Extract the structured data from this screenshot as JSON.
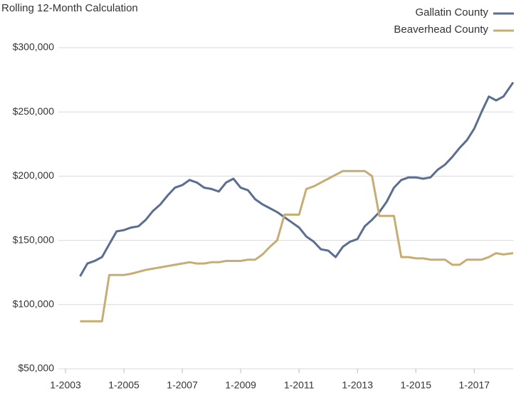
{
  "chart_data": {
    "type": "line",
    "title": "Rolling 12-Month Calculation",
    "x": [
      "2003-07",
      "2003-10",
      "2004-01",
      "2004-04",
      "2004-07",
      "2004-10",
      "2005-01",
      "2005-04",
      "2005-07",
      "2005-10",
      "2006-01",
      "2006-04",
      "2006-07",
      "2006-10",
      "2007-01",
      "2007-04",
      "2007-07",
      "2007-10",
      "2008-01",
      "2008-04",
      "2008-07",
      "2008-10",
      "2009-01",
      "2009-04",
      "2009-07",
      "2009-10",
      "2010-01",
      "2010-04",
      "2010-07",
      "2010-10",
      "2011-01",
      "2011-04",
      "2011-07",
      "2011-10",
      "2012-01",
      "2012-04",
      "2012-07",
      "2012-10",
      "2013-01",
      "2013-04",
      "2013-07",
      "2013-10",
      "2014-01",
      "2014-04",
      "2014-07",
      "2014-10",
      "2015-01",
      "2015-04",
      "2015-07",
      "2015-10",
      "2016-01",
      "2016-04",
      "2016-07",
      "2016-10",
      "2017-01",
      "2017-04",
      "2017-07",
      "2017-10",
      "2018-01",
      "2018-05"
    ],
    "series": [
      {
        "name": "Gallatin County",
        "color": "#5a6e91",
        "values": [
          122000,
          132000,
          134000,
          137000,
          147000,
          157000,
          158000,
          160000,
          161000,
          166000,
          173000,
          178000,
          185000,
          191000,
          193000,
          197000,
          195000,
          191000,
          190000,
          188000,
          195000,
          198000,
          191000,
          189000,
          182000,
          178000,
          175000,
          172000,
          168000,
          164000,
          160000,
          153000,
          149000,
          143000,
          142000,
          137000,
          145000,
          149000,
          151000,
          161000,
          166000,
          172000,
          180000,
          191000,
          197000,
          199000,
          199000,
          198000,
          199000,
          205000,
          209000,
          215000,
          222000,
          228000,
          237000,
          250000,
          262000,
          259000,
          262000,
          273000
        ]
      },
      {
        "name": "Beaverhead County",
        "color": "#c8ad72",
        "values": [
          87000,
          87000,
          87000,
          87000,
          123000,
          123000,
          123000,
          124000,
          125500,
          127000,
          128000,
          129000,
          130000,
          131000,
          132000,
          133000,
          132000,
          132000,
          133000,
          133000,
          134000,
          134000,
          134000,
          135000,
          135000,
          139000,
          145000,
          150000,
          170000,
          170000,
          170000,
          190000,
          192000,
          195000,
          198000,
          201000,
          204000,
          204000,
          204000,
          204000,
          200000,
          169000,
          169000,
          169000,
          137000,
          137000,
          136000,
          136000,
          135000,
          135000,
          135000,
          131000,
          131000,
          135000,
          135000,
          135000,
          137000,
          140000,
          139000,
          140000
        ]
      }
    ],
    "xlim": [
      "2003-01",
      "2018-05"
    ],
    "xticks": [
      {
        "value": "2003-01",
        "label": "1-2003"
      },
      {
        "value": "2005-01",
        "label": "1-2005"
      },
      {
        "value": "2007-01",
        "label": "1-2007"
      },
      {
        "value": "2009-01",
        "label": "1-2009"
      },
      {
        "value": "2011-01",
        "label": "1-2011"
      },
      {
        "value": "2013-01",
        "label": "1-2013"
      },
      {
        "value": "2015-01",
        "label": "1-2015"
      },
      {
        "value": "2017-01",
        "label": "1-2017"
      }
    ],
    "ylim": [
      50000,
      300000
    ],
    "yticks": [
      {
        "value": 50000,
        "label": "$50,000"
      },
      {
        "value": 100000,
        "label": "$100,000"
      },
      {
        "value": 150000,
        "label": "$150,000"
      },
      {
        "value": 200000,
        "label": "$200,000"
      },
      {
        "value": 250000,
        "label": "$250,000"
      },
      {
        "value": 300000,
        "label": "$300,000"
      }
    ],
    "grid": true,
    "legend": "top-right"
  }
}
